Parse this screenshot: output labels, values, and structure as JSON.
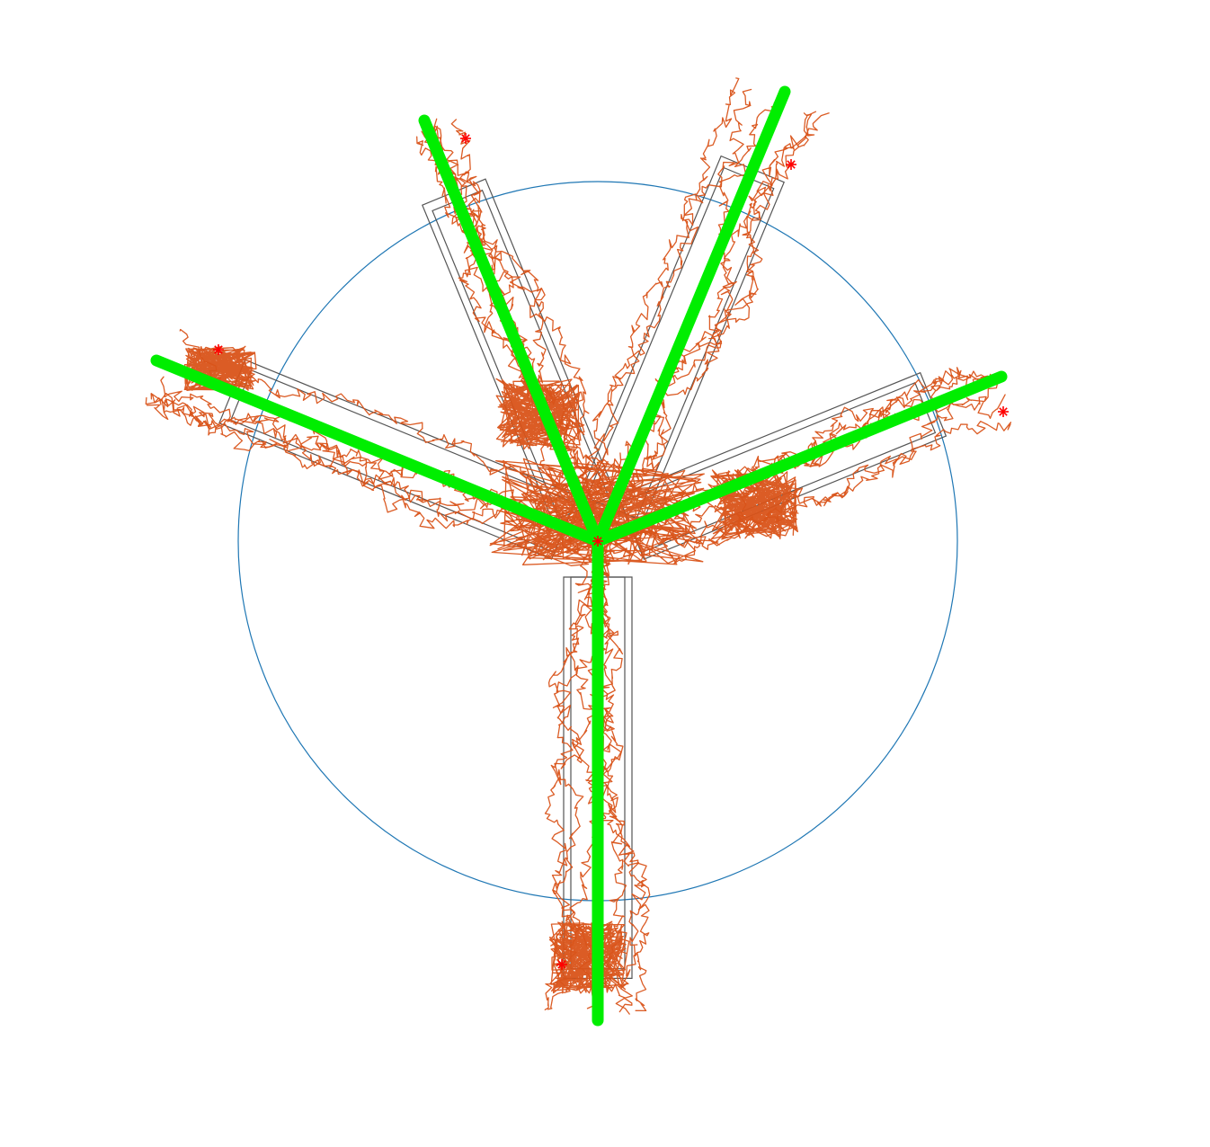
{
  "figure": {
    "colors": {
      "background": "#ffffff",
      "arena_circle": "#1f77b4",
      "maze_outline": "#555555",
      "trajectory": "#d95319",
      "skeleton": "#00ee00",
      "markers": "#ff0000"
    },
    "icons": {
      "marker": "asterisk-icon"
    },
    "arms": [
      {
        "name": "arm-bottom"
      },
      {
        "name": "arm-left"
      },
      {
        "name": "arm-upper-left"
      },
      {
        "name": "arm-upper-right"
      },
      {
        "name": "arm-right"
      }
    ]
  }
}
